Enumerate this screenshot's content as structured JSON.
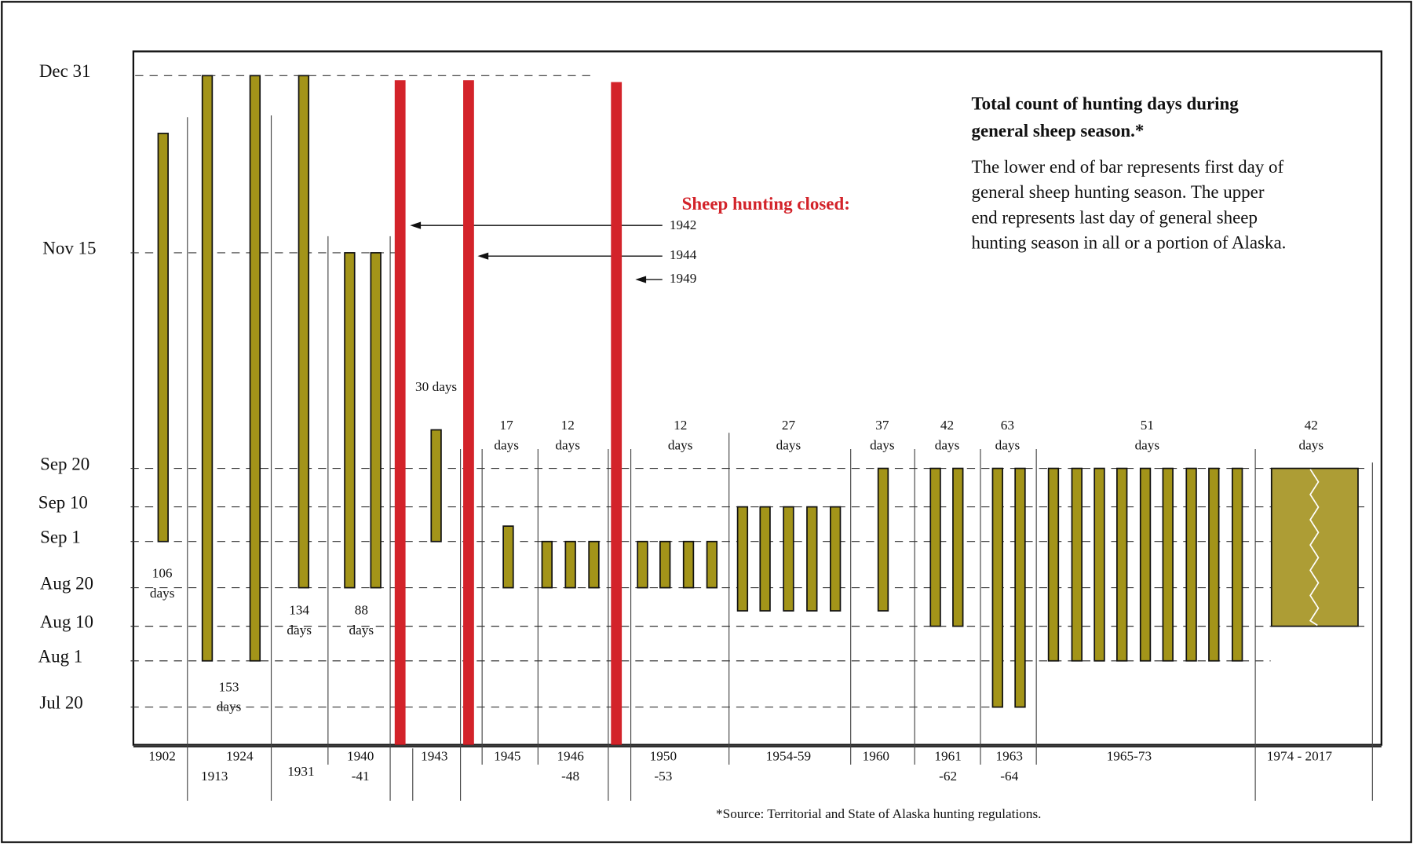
{
  "chart_data": {
    "type": "range-bar",
    "note_title": [
      "Total count of hunting days during",
      "general sheep season.*"
    ],
    "note_text": [
      "The lower end of bar represents first day of",
      "general sheep hunting season. The upper",
      "end represents last day of general sheep",
      "hunting season in all or a portion of Alaska."
    ],
    "closed_title": "Sheep hunting closed:",
    "closed_years": [
      "1942",
      "1944",
      "1949"
    ],
    "source": "*Source: Territorial and State of Alaska hunting regulations.",
    "color": "#a39419",
    "closed_color": "#d3232a",
    "ylim": [
      191.2,
      371.3
    ],
    "yticks": [
      {
        "value": 201,
        "label": "Jul 20"
      },
      {
        "value": 213,
        "label": "Aug 1"
      },
      {
        "value": 222,
        "label": "Aug 10"
      },
      {
        "value": 232,
        "label": "Aug 20"
      },
      {
        "value": 244,
        "label": "Sep 1"
      },
      {
        "value": 253,
        "label": "Sep 10"
      },
      {
        "value": 263,
        "label": "Sep 20"
      },
      {
        "value": 319,
        "label": "Nov 15"
      },
      {
        "value": 365,
        "label": "Dec 31"
      }
    ],
    "groups": [
      {
        "label": [
          "1902"
        ],
        "days": [
          "106",
          "days"
        ],
        "starts": [
          244
        ],
        "ends": [
          350
        ]
      },
      {
        "label": [
          "1913"
        ],
        "days": [
          "153",
          "days"
        ],
        "starts": [
          213
        ],
        "ends": [
          365
        ]
      },
      {
        "label": [
          "1924"
        ],
        "starts": [
          213
        ],
        "ends": [
          365
        ]
      },
      {
        "label": [
          "1931"
        ],
        "days": [
          "134",
          "days"
        ],
        "starts": [
          232
        ],
        "ends": [
          365
        ]
      },
      {
        "label": [
          "1940",
          "-41"
        ],
        "days": [
          "88",
          "days"
        ],
        "starts": [
          232,
          232
        ],
        "ends": [
          319,
          319
        ]
      },
      {
        "label": [
          "1943"
        ],
        "days": [
          "30 days"
        ],
        "starts": [
          244
        ],
        "ends": [
          273
        ]
      },
      {
        "label": [
          "1945"
        ],
        "days": [
          "17",
          "days"
        ],
        "starts": [
          232
        ],
        "ends": [
          248
        ]
      },
      {
        "label": [
          "1946",
          "-48"
        ],
        "days": [
          "12",
          "days"
        ],
        "starts": [
          232,
          232,
          232
        ],
        "ends": [
          244,
          244,
          244
        ]
      },
      {
        "label": [
          "1950",
          "-53"
        ],
        "days": [
          "12",
          "days"
        ],
        "starts": [
          232,
          232,
          232,
          232
        ],
        "ends": [
          244,
          244,
          244,
          244
        ]
      },
      {
        "label": [
          "1954-59"
        ],
        "days": [
          "27",
          "days"
        ],
        "starts": [
          226,
          226,
          226,
          226,
          226
        ],
        "ends": [
          253,
          253,
          253,
          253,
          253
        ]
      },
      {
        "label": [
          "1960"
        ],
        "days": [
          "37",
          "days"
        ],
        "starts": [
          226
        ],
        "ends": [
          263
        ]
      },
      {
        "label": [
          "1961",
          "-62"
        ],
        "days": [
          "42",
          "days"
        ],
        "starts": [
          222,
          222
        ],
        "ends": [
          263,
          263
        ]
      },
      {
        "label": [
          "1963",
          "-64"
        ],
        "days": [
          "63",
          "days"
        ],
        "starts": [
          201,
          201
        ],
        "ends": [
          263,
          263
        ]
      },
      {
        "label": [
          "1965-73"
        ],
        "days": [
          "51",
          "days"
        ],
        "starts": [
          213,
          213,
          213,
          213,
          213,
          213,
          213,
          213,
          213
        ],
        "ends": [
          263,
          263,
          263,
          263,
          263,
          263,
          263,
          263,
          263
        ]
      },
      {
        "label": [
          "1974 - 2017"
        ],
        "days": [
          "42",
          "days"
        ],
        "starts": [
          222
        ],
        "ends": [
          263
        ]
      }
    ]
  }
}
